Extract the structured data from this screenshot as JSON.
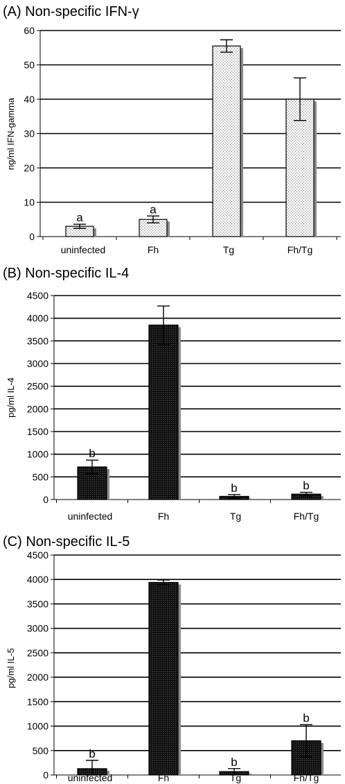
{
  "chart_data": [
    {
      "type": "bar",
      "title": "(A) Non-specific IFN-γ",
      "ylabel": "ng/ml IFN-gamma",
      "categories": [
        "uninfected",
        "Fh",
        "Tg",
        "Fh/Tg"
      ],
      "values": [
        3.0,
        5.0,
        55.5,
        40.0
      ],
      "error": [
        0.6,
        1.0,
        1.8,
        6.2
      ],
      "annotations": [
        "a",
        "a",
        "",
        ""
      ],
      "ylim": [
        0,
        60
      ],
      "yticks": [
        0,
        10,
        20,
        30,
        40,
        50,
        60
      ],
      "fill": "dotted-light",
      "grid": true
    },
    {
      "type": "bar",
      "title": "(B) Non-specific IL-4",
      "ylabel": "pg/ml IL-4",
      "categories": [
        "uninfected",
        "Fh",
        "Tg",
        "Fh/Tg"
      ],
      "values": [
        720,
        3850,
        70,
        120
      ],
      "error": [
        150,
        420,
        40,
        40
      ],
      "annotations": [
        "b",
        "",
        "b",
        "b"
      ],
      "ylim": [
        0,
        4500
      ],
      "yticks": [
        0,
        500,
        1000,
        1500,
        2000,
        2500,
        3000,
        3500,
        4000,
        4500
      ],
      "fill": "dark",
      "grid": true
    },
    {
      "type": "bar",
      "title": "(C) Non-specific IL-5",
      "ylabel": "pg/ml IL-5",
      "categories": [
        "uninfected",
        "Fh",
        "Tg",
        "Fh/Tg"
      ],
      "values": [
        130,
        3940,
        70,
        700
      ],
      "error": [
        170,
        50,
        60,
        330
      ],
      "annotations": [
        "b",
        "",
        "b",
        "b"
      ],
      "ylim": [
        0,
        4500
      ],
      "yticks": [
        0,
        500,
        1000,
        1500,
        2000,
        2500,
        3000,
        3500,
        4000,
        4500
      ],
      "fill": "dark",
      "grid": true
    }
  ]
}
